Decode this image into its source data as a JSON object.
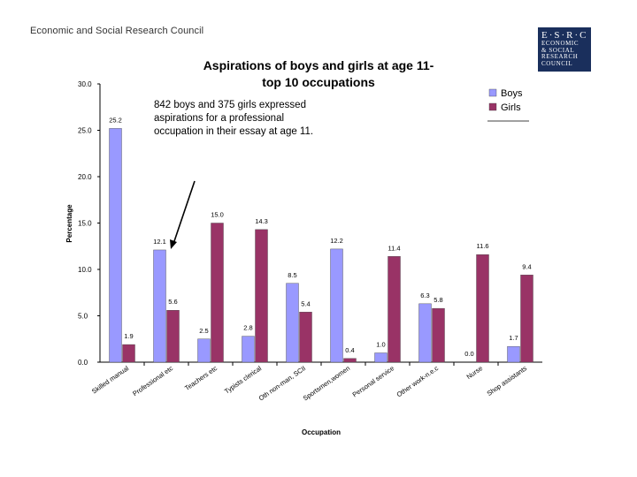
{
  "header": {
    "org_name": "Economic and Social Research Council",
    "logo_top": "E·S·R·C",
    "logo_lines": [
      "ECONOMIC",
      "& SOCIAL",
      "RESEARCH",
      "COUNCIL"
    ]
  },
  "annotation": "842 boys and 375 girls expressed aspirations for a professional occupation in their essay at age 11.",
  "chart_data": {
    "type": "bar",
    "title_lines": [
      "Aspirations of boys and girls at age 11-",
      "top 10 occupations"
    ],
    "xlabel": "Occupation",
    "ylabel": "Percentage",
    "ylim": [
      0,
      30
    ],
    "yticks": [
      "0.0",
      "5.0",
      "10.0",
      "15.0",
      "20.0",
      "25.0",
      "30.0"
    ],
    "legend_position": "top-right",
    "categories": [
      "Skilled manual",
      "Professional etc",
      "Teachers etc",
      "Typists clerical",
      "Oth non-man, SCII",
      "Sportsmen,women",
      "Personal service",
      "Other work-n.e.c",
      "Nurse",
      "Shop assistants"
    ],
    "series": [
      {
        "name": "Boys",
        "color": "#9999ff",
        "values": [
          25.2,
          12.1,
          2.5,
          2.8,
          8.5,
          12.2,
          1.0,
          6.3,
          0.0,
          1.7
        ],
        "labels": [
          "25.2",
          "12.1",
          "2.5",
          "2.8",
          "8.5",
          "12.2",
          "1.0",
          "6.3",
          "0.0",
          "1.7"
        ]
      },
      {
        "name": "Girls",
        "color": "#993366",
        "values": [
          1.9,
          5.6,
          15.0,
          14.3,
          5.4,
          0.4,
          11.4,
          5.8,
          11.6,
          9.4
        ],
        "labels": [
          "1.9",
          "5.6",
          "15.0",
          "14.3",
          "5.4",
          "0.4",
          "11.4",
          "5.8",
          "11.6",
          "9.4"
        ]
      }
    ],
    "grid": false
  }
}
